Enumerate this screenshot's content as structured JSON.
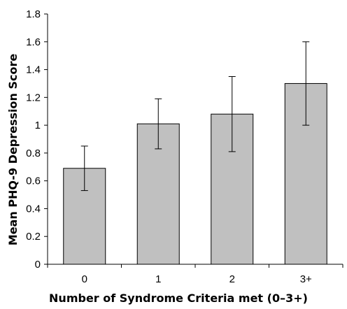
{
  "chart_data": {
    "type": "bar",
    "categories": [
      "0",
      "1",
      "2",
      "3+"
    ],
    "values": [
      0.69,
      1.01,
      1.08,
      1.3
    ],
    "error_low": [
      0.53,
      0.83,
      0.81,
      1.0
    ],
    "error_high": [
      0.85,
      1.19,
      1.35,
      1.6
    ],
    "xlabel": "Number of Syndrome Criteria met (0–3+)",
    "ylabel": "Mean PHQ-9 Depression Score",
    "ylim": [
      0,
      1.8
    ],
    "yticks": [
      "0",
      "0.2",
      "0.4",
      "0.6",
      "0.8",
      "1",
      "1.2",
      "1.4",
      "1.6",
      "1.8"
    ],
    "grid": false,
    "bar_color": "#c0c0c0",
    "bar_edge_color": "#000000"
  }
}
